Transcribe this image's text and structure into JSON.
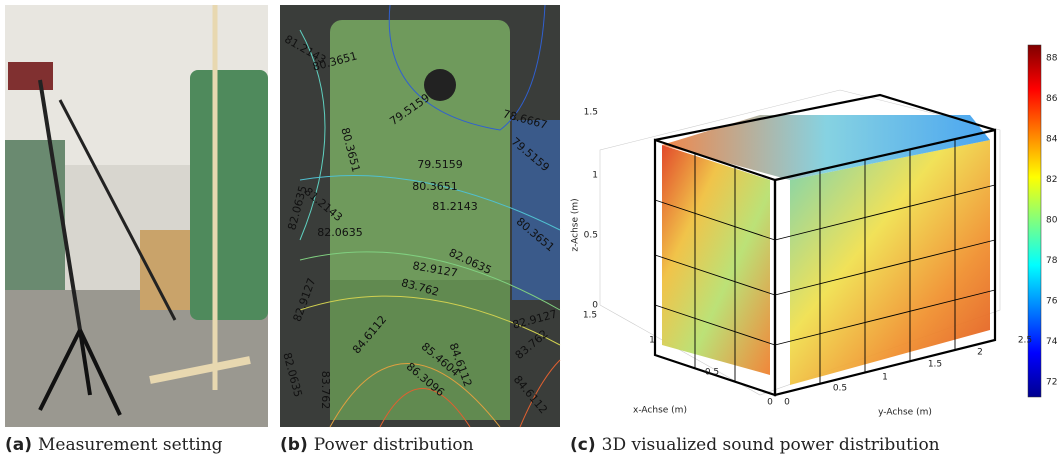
{
  "panels": [
    {
      "tag": "(a)",
      "caption": "Measurement setting"
    },
    {
      "tag": "(b)",
      "caption": "Power distribution",
      "contour_labels": [
        "80.3651",
        "81.2143",
        "79.5159",
        "78.6667",
        "79.5159",
        "80.3651",
        "82.0635",
        "81.2143",
        "79.5159",
        "80.3651",
        "80.3651",
        "82.0635",
        "81.2143",
        "82.0635",
        "82.9127",
        "82.9127",
        "83.762",
        "82.9127",
        "83.762",
        "84.6112",
        "85.4604",
        "84.6112",
        "86.3096",
        "82.0635",
        "83.762",
        "84.6112"
      ]
    },
    {
      "tag": "(c)",
      "caption": "3D visualized sound power distribution",
      "z_label": "z-Achse (m)",
      "z_ticks": [
        "0",
        "0.5",
        "1",
        "1.5"
      ],
      "x_label": "x-Achse (m)",
      "x_ticks": [
        "1.5",
        "1",
        "0.5",
        "0"
      ],
      "y_label": "y-Achse (m)",
      "y_ticks": [
        "0",
        "0.5",
        "1",
        "1.5",
        "2",
        "2.5"
      ],
      "colorbar_ticks": [
        "88",
        "86",
        "84",
        "82",
        "80",
        "78",
        "76",
        "74",
        "72"
      ]
    }
  ]
}
